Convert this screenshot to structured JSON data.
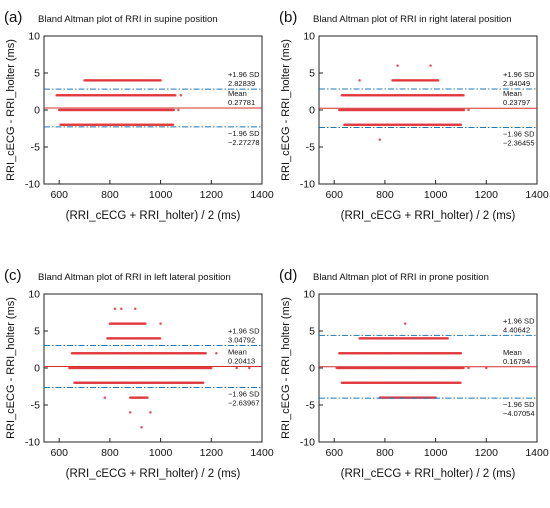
{
  "chart_data": [
    {
      "type": "scatter",
      "panel_label": "(a)",
      "title": "Bland Altman plot of RRI in supine position",
      "xlabel": "(RRI_cECG + RRI_holter) / 2 (ms)",
      "ylabel": "RRI_cECG - RRI_holter (ms)",
      "xlim": [
        540,
        1400
      ],
      "ylim": [
        -10,
        10
      ],
      "xticks": [
        "600",
        "800",
        "1000",
        "1200",
        "1400"
      ],
      "yticks": [
        "10",
        "5",
        "0",
        "-5",
        "-10"
      ],
      "upper": {
        "label": "+1.96 SD",
        "value_text": "2.82839",
        "value": 2.82839
      },
      "mean": {
        "label": "Mean",
        "value_text": "0.27781",
        "value": 0.27781
      },
      "lower": {
        "label": "-1.96 SD",
        "value_text": "-2.27278",
        "value": -2.27278
      },
      "bands": [
        [
          590,
          1060,
          2
        ],
        [
          600,
          1055,
          0
        ],
        [
          605,
          1050,
          -2
        ],
        [
          700,
          1000,
          4
        ]
      ],
      "points": [
        [
          640,
          2
        ],
        [
          1070,
          0
        ],
        [
          1080,
          2
        ]
      ],
      "colors": {
        "points": "#e0353a",
        "mean": "#d32f2f",
        "sd": "#1f78b4"
      }
    },
    {
      "type": "scatter",
      "panel_label": "(b)",
      "title": "Bland Altman plot of RRI in right lateral position",
      "xlabel": "(RRI_cECG + RRI_holter) / 2 (ms)",
      "ylabel": "RRI_cECG - RRI_holter (ms)",
      "xlim": [
        540,
        1400
      ],
      "ylim": [
        -10,
        10
      ],
      "xticks": [
        "600",
        "800",
        "1000",
        "1200",
        "1400"
      ],
      "yticks": [
        "10",
        "5",
        "0",
        "-5",
        "-10"
      ],
      "upper": {
        "label": "+1.96 SD",
        "value_text": "2.84049",
        "value": 2.84049
      },
      "mean": {
        "label": "Mean",
        "value_text": "0.23797",
        "value": 0.23797
      },
      "lower": {
        "label": "-1.96 SD",
        "value_text": "-2.36455",
        "value": -2.36455
      },
      "bands": [
        [
          630,
          1110,
          2
        ],
        [
          620,
          1115,
          0
        ],
        [
          640,
          1100,
          -2
        ],
        [
          830,
          1010,
          4
        ]
      ],
      "points": [
        [
          850,
          6
        ],
        [
          980,
          6
        ],
        [
          780,
          -4
        ],
        [
          1130,
          0
        ],
        [
          700,
          4
        ]
      ],
      "colors": {
        "points": "#e0353a",
        "mean": "#d32f2f",
        "sd": "#1f78b4"
      }
    },
    {
      "type": "scatter",
      "panel_label": "(c)",
      "title": "Bland Altman plot of RRI in left lateral position",
      "xlabel": "(RRI_cECG + RRI_holter) / 2 (ms)",
      "ylabel": "RRI_cECG - RRI_holter (ms)",
      "xlim": [
        540,
        1400
      ],
      "ylim": [
        -10,
        10
      ],
      "xticks": [
        "600",
        "800",
        "1000",
        "1200",
        "1400"
      ],
      "yticks": [
        "10",
        "5",
        "0",
        "-5",
        "-10"
      ],
      "upper": {
        "label": "+1.96 SD",
        "value_text": "3.04792",
        "value": 3.04792
      },
      "mean": {
        "label": "Mean",
        "value_text": "0.20413",
        "value": 0.20413
      },
      "lower": {
        "label": "-1.96 SD",
        "value_text": "-2.63967",
        "value": -2.63967
      },
      "bands": [
        [
          650,
          1180,
          2
        ],
        [
          640,
          1200,
          0
        ],
        [
          660,
          1170,
          -2
        ],
        [
          790,
          1000,
          4
        ],
        [
          800,
          940,
          6
        ],
        [
          880,
          950,
          -4
        ]
      ],
      "points": [
        [
          820,
          8
        ],
        [
          845,
          8
        ],
        [
          900,
          8
        ],
        [
          1000,
          6
        ],
        [
          960,
          -6
        ],
        [
          925,
          -8
        ],
        [
          880,
          -6
        ],
        [
          1220,
          2
        ],
        [
          1300,
          0
        ],
        [
          1350,
          0
        ],
        [
          780,
          -4
        ]
      ],
      "colors": {
        "points": "#e0353a",
        "mean": "#d32f2f",
        "sd": "#1f78b4"
      }
    },
    {
      "type": "scatter",
      "panel_label": "(d)",
      "title": "Bland Altman plot of RRI in prone position",
      "xlabel": "(RRI_cECG + RRI_holter) / 2 (ms)",
      "ylabel": "RRI_cECG - RRI_holter (ms)",
      "xlim": [
        540,
        1400
      ],
      "ylim": [
        -10,
        10
      ],
      "xticks": [
        "600",
        "800",
        "1000",
        "1200",
        "1400"
      ],
      "yticks": [
        "10",
        "5",
        "0",
        "-5",
        "-10"
      ],
      "upper": {
        "label": "+1.96 SD",
        "value_text": "4.40642",
        "value": 4.40642
      },
      "mean": {
        "label": "Mean",
        "value_text": "0.16794",
        "value": 0.16794
      },
      "lower": {
        "label": "-1.96 SD",
        "value_text": "-4.07054",
        "value": -4.07054
      },
      "bands": [
        [
          620,
          1100,
          2
        ],
        [
          610,
          1110,
          0
        ],
        [
          630,
          1100,
          -2
        ],
        [
          700,
          1050,
          4
        ],
        [
          780,
          1000,
          -4
        ]
      ],
      "points": [
        [
          880,
          6
        ],
        [
          1130,
          0
        ],
        [
          1200,
          0
        ]
      ],
      "colors": {
        "points": "#e0353a",
        "mean": "#d32f2f",
        "sd": "#1f78b4"
      }
    }
  ]
}
